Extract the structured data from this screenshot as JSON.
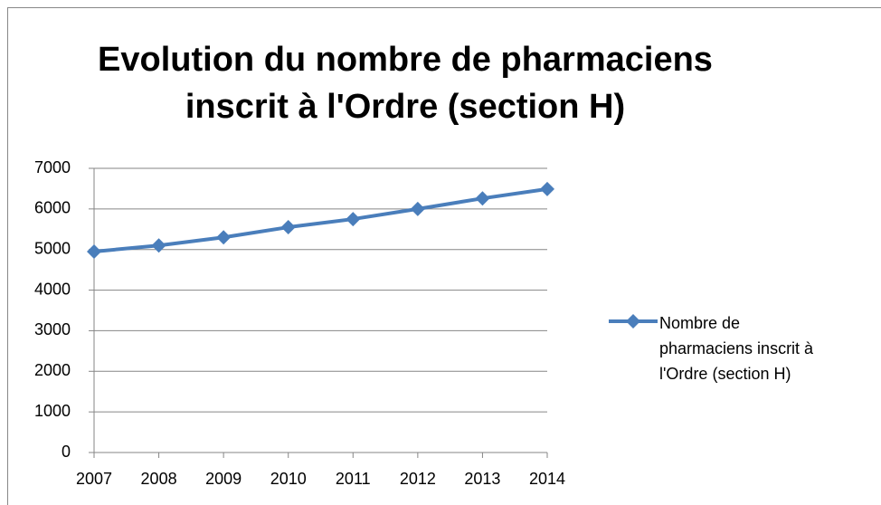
{
  "chart_data": {
    "type": "line",
    "title": "Evolution du nombre de pharmaciens inscrit à l'Ordre (section H)",
    "categories": [
      "2007",
      "2008",
      "2009",
      "2010",
      "2011",
      "2012",
      "2013",
      "2014"
    ],
    "series": [
      {
        "name": "Nombre de pharmaciens inscrit à l'Ordre (section H)",
        "color": "#4a7ebb",
        "values": [
          4950,
          5100,
          5300,
          5550,
          5750,
          6000,
          6260,
          6490
        ]
      }
    ],
    "ylim": [
      0,
      7000
    ],
    "yticks": [
      0,
      1000,
      2000,
      3000,
      4000,
      5000,
      6000,
      7000
    ],
    "grid": true,
    "legend": "right"
  }
}
